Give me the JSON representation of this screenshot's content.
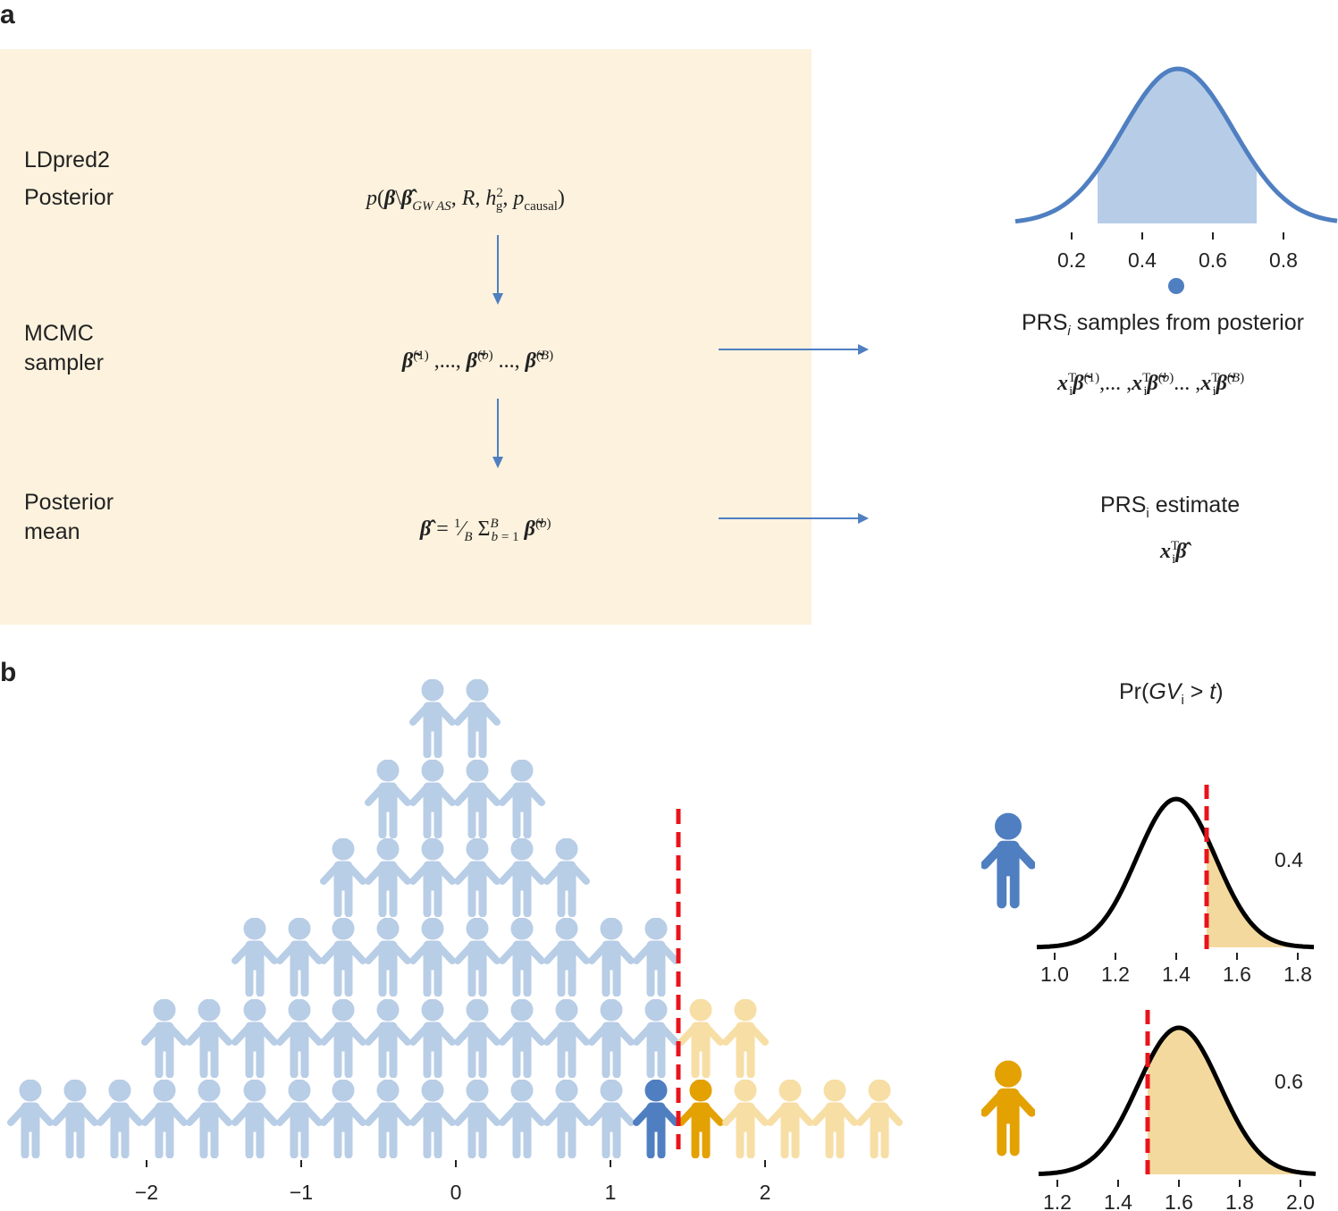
{
  "panel_a": {
    "label": "a",
    "rows": {
      "ldpred2": "LDpred2",
      "posterior": "Posterior",
      "mcmc_line1": "MCMC",
      "mcmc_line2": "sampler",
      "pm_line1": "Posterior",
      "pm_line2": "mean"
    },
    "right": {
      "samples_caption": "samples from posterior",
      "prs": "PRS",
      "prs_sub_i": "i",
      "estimate_caption": "estimate",
      "ticks": [
        "0.2",
        "0.4",
        "0.6",
        "0.8"
      ]
    }
  },
  "panel_b": {
    "label": "b",
    "title_prefix": "Pr(",
    "title_gv": "GV",
    "title_sub": "i",
    "title_rest": " > ",
    "title_t": "t",
    "title_close": ")",
    "axis_ticks": [
      "−2",
      "−1",
      "0",
      "1",
      "2"
    ],
    "blue_person": {
      "prob": "0.4",
      "ticks": [
        "1.0",
        "1.2",
        "1.4",
        "1.6",
        "1.8"
      ]
    },
    "orange_person": {
      "prob": "0.6",
      "ticks": [
        "1.2",
        "1.4",
        "1.6",
        "1.8",
        "2.0"
      ]
    }
  },
  "colors": {
    "beige": "#fcf2de",
    "arrow_blue": "#4f7fc1",
    "light_blue": "#b8cde6",
    "dark_blue": "#4f7fc1",
    "light_orange": "#f7dea5",
    "dark_orange": "#e3a102",
    "red": "#e8141c",
    "fill_orange": "#f3d99d",
    "fill_blue": "#b7cde7"
  }
}
